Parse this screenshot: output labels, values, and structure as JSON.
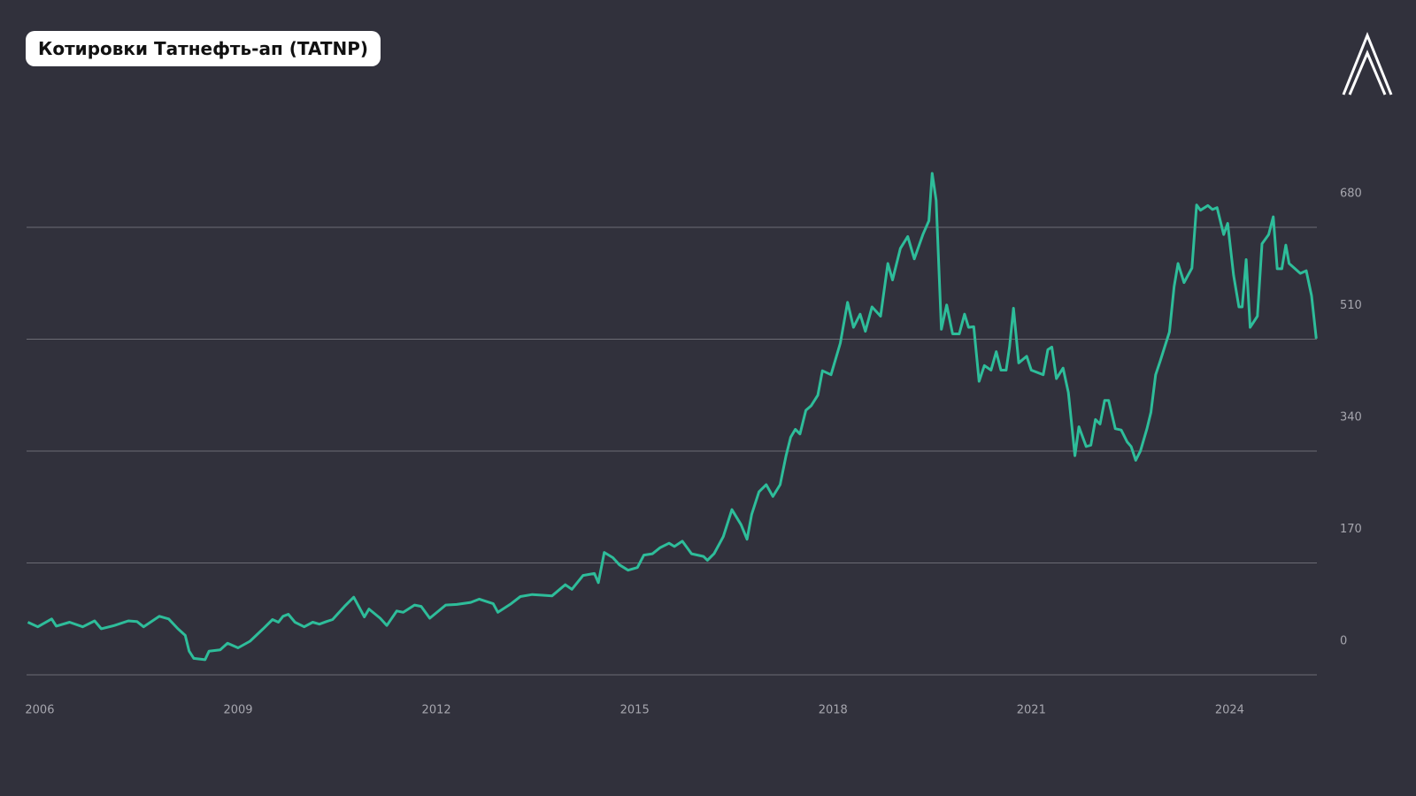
{
  "chart_data": {
    "type": "line",
    "title": "Котировки Татнефть-ап (TATNP)",
    "x": [
      2005.82,
      2005.97,
      2006.18,
      2006.25,
      2006.45,
      2006.65,
      2006.83,
      2006.93,
      2007.13,
      2007.34,
      2007.47,
      2007.57,
      2007.81,
      2007.95,
      2008.09,
      2008.2,
      2008.26,
      2008.33,
      2008.5,
      2008.56,
      2008.73,
      2008.84,
      2009.0,
      2009.18,
      2009.38,
      2009.52,
      2009.61,
      2009.68,
      2009.76,
      2009.86,
      2010.0,
      2010.13,
      2010.23,
      2010.34,
      2010.43,
      2010.61,
      2010.75,
      2010.91,
      2010.98,
      2011.15,
      2011.25,
      2011.4,
      2011.5,
      2011.67,
      2011.77,
      2011.9,
      2012.14,
      2012.31,
      2012.52,
      2012.65,
      2012.86,
      2012.93,
      2013.13,
      2013.27,
      2013.45,
      2013.61,
      2013.75,
      2013.95,
      2014.05,
      2014.22,
      2014.39,
      2014.45,
      2014.54,
      2014.67,
      2014.77,
      2014.9,
      2015.04,
      2015.14,
      2015.27,
      2015.38,
      2015.52,
      2015.6,
      2015.72,
      2015.86,
      2016.04,
      2016.1,
      2016.2,
      2016.34,
      2016.47,
      2016.61,
      2016.7,
      2016.77,
      2016.88,
      2016.99,
      2017.09,
      2017.2,
      2017.29,
      2017.36,
      2017.43,
      2017.5,
      2017.59,
      2017.67,
      2017.77,
      2017.84,
      2017.97,
      2018.11,
      2018.22,
      2018.31,
      2018.41,
      2018.49,
      2018.59,
      2018.72,
      2018.83,
      2018.9,
      2019.02,
      2019.13,
      2019.23,
      2019.36,
      2019.45,
      2019.5,
      2019.56,
      2019.64,
      2019.72,
      2019.81,
      2019.91,
      2019.99,
      2020.05,
      2020.13,
      2020.21,
      2020.29,
      2020.39,
      2020.47,
      2020.54,
      2020.62,
      2020.67,
      2020.73,
      2020.81,
      2020.93,
      2021.0,
      2021.18,
      2021.25,
      2021.31,
      2021.38,
      2021.48,
      2021.56,
      2021.66,
      2021.72,
      2021.83,
      2021.9,
      2021.97,
      2022.04,
      2022.11,
      2022.17,
      2022.27,
      2022.36,
      2022.45,
      2022.51,
      2022.58,
      2022.65,
      2022.75,
      2022.81,
      2022.88,
      2022.95,
      2023.09,
      2023.16,
      2023.22,
      2023.31,
      2023.43,
      2023.5,
      2023.56,
      2023.67,
      2023.74,
      2023.81,
      2023.91,
      2023.97,
      2024.06,
      2024.14,
      2024.19,
      2024.25,
      2024.31,
      2024.42,
      2024.49,
      2024.59,
      2024.66,
      2024.72,
      2024.79,
      2024.85,
      2024.9,
      2025.07,
      2025.16,
      2025.24,
      2025.31
    ],
    "series": [
      {
        "color": "#2ebd9a",
        "values": [
          80,
          73,
          85,
          74,
          80,
          73,
          82,
          70,
          75,
          82,
          81,
          73,
          89,
          85,
          70,
          60,
          36,
          25,
          23,
          36,
          38,
          48,
          41,
          51,
          70,
          84,
          80,
          89,
          92,
          80,
          73,
          80,
          77,
          81,
          84,
          104,
          118,
          88,
          100,
          86,
          75,
          97,
          95,
          106,
          104,
          86,
          106,
          107,
          110,
          115,
          108,
          95,
          108,
          119,
          122,
          121,
          120,
          137,
          130,
          151,
          154,
          140,
          186,
          178,
          167,
          159,
          163,
          182,
          184,
          193,
          200,
          195,
          203,
          184,
          180,
          174,
          184,
          210,
          251,
          228,
          206,
          244,
          278,
          289,
          271,
          289,
          333,
          361,
          373,
          366,
          402,
          409,
          425,
          462,
          456,
          504,
          566,
          528,
          548,
          522,
          559,
          545,
          625,
          600,
          648,
          666,
          632,
          669,
          690,
          762,
          721,
          525,
          562,
          518,
          518,
          548,
          528,
          529,
          446,
          470,
          463,
          491,
          463,
          463,
          498,
          557,
          474,
          484,
          463,
          456,
          494,
          498,
          450,
          466,
          429,
          333,
          377,
          347,
          349,
          388,
          381,
          417,
          417,
          374,
          372,
          354,
          347,
          326,
          340,
          374,
          399,
          456,
          477,
          521,
          590,
          625,
          596,
          618,
          714,
          706,
          713,
          707,
          710,
          669,
          686,
          607,
          559,
          559,
          631,
          528,
          545,
          655,
          669,
          696,
          617,
          617,
          653,
          625,
          610,
          614,
          576,
          511
        ]
      }
    ],
    "xlim": [
      2005.8,
      2025.32
    ],
    "xticks": [
      2006,
      2009,
      2012,
      2015,
      2018,
      2021,
      2024
    ],
    "ylim": [
      0,
      850
    ],
    "yticks": [
      0,
      170,
      340,
      510,
      680
    ],
    "grid": true
  }
}
